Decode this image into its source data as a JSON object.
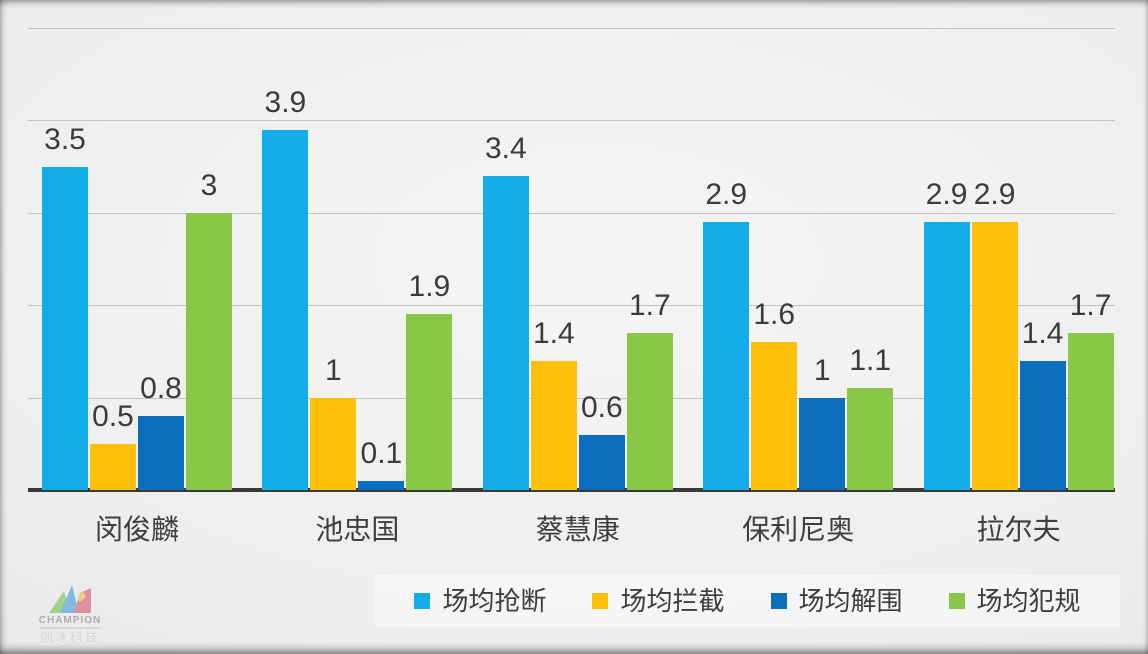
{
  "chart_data": {
    "type": "bar",
    "title": "",
    "xlabel": "",
    "ylabel": "",
    "categories": [
      "闵俊麟",
      "池忠国",
      "蔡慧康",
      "保利尼奥",
      "拉尔夫"
    ],
    "series": [
      {
        "key": "steals",
        "name": "场均抢断",
        "color": "#12ACE9",
        "values": [
          3.5,
          3.9,
          3.4,
          2.9,
          2.9
        ],
        "labels": [
          "3.5",
          "3.9",
          "3.4",
          "2.9",
          "2.9"
        ]
      },
      {
        "key": "interceptions",
        "name": "场均拦截",
        "color": "#FFC00A",
        "values": [
          0.5,
          1.0,
          1.4,
          1.6,
          2.9
        ],
        "labels": [
          "0.5",
          "1",
          "1.4",
          "1.6",
          "2.9"
        ]
      },
      {
        "key": "clearances",
        "name": "场均解围",
        "color": "#0A6EBD",
        "values": [
          0.8,
          0.1,
          0.6,
          1.0,
          1.4
        ],
        "labels": [
          "0.8",
          "0.1",
          "0.6",
          "1",
          "1.4"
        ]
      },
      {
        "key": "fouls",
        "name": "场均犯规",
        "color": "#88C846",
        "values": [
          3.0,
          1.9,
          1.7,
          1.1,
          1.7
        ],
        "labels": [
          "3",
          "1.9",
          "1.7",
          "1.1",
          "1.7"
        ]
      }
    ],
    "ylim": [
      0,
      5
    ],
    "gridline_step": 1,
    "grid": true,
    "legend_position": "bottom",
    "colors": {
      "axis": "#3A3A3A",
      "gridline": "#C2C2C2",
      "label_text": "#3B3B3B"
    }
  },
  "watermark": {
    "brand": "CHAMPION",
    "company": "创冰科技"
  }
}
